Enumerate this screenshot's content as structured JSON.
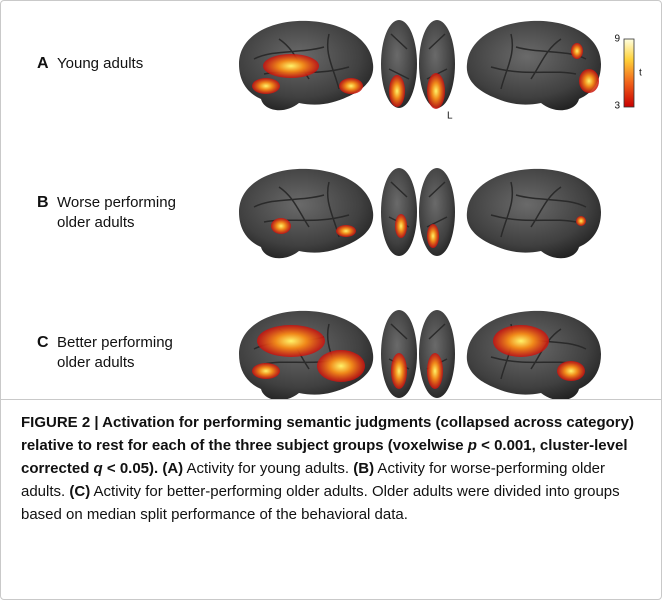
{
  "figure": {
    "panels": [
      {
        "letter": "A",
        "label_lines": [
          "Young adults"
        ]
      },
      {
        "letter": "B",
        "label_lines": [
          "Worse performing",
          "older adults"
        ]
      },
      {
        "letter": "C",
        "label_lines": [
          "Better performing",
          "older adults"
        ]
      }
    ],
    "colorbar": {
      "max": 9,
      "min": 3,
      "label": "t"
    },
    "orientation_label": "L",
    "caption": {
      "runs": [
        "FIGURE 2 | Activation for performing semantic judgments (collapsed across category) relative to rest for each of the three subject groups (voxelwise ",
        "p",
        " < 0.001, cluster-level corrected ",
        "q",
        " < 0.05). (A)",
        " Activity for young adults. ",
        "(B)",
        " Activity for worse-performing older adults. ",
        "(C)",
        " Activity for better-performing older adults. Older adults were divided into groups based on median split performance of the behavioral data."
      ]
    }
  }
}
